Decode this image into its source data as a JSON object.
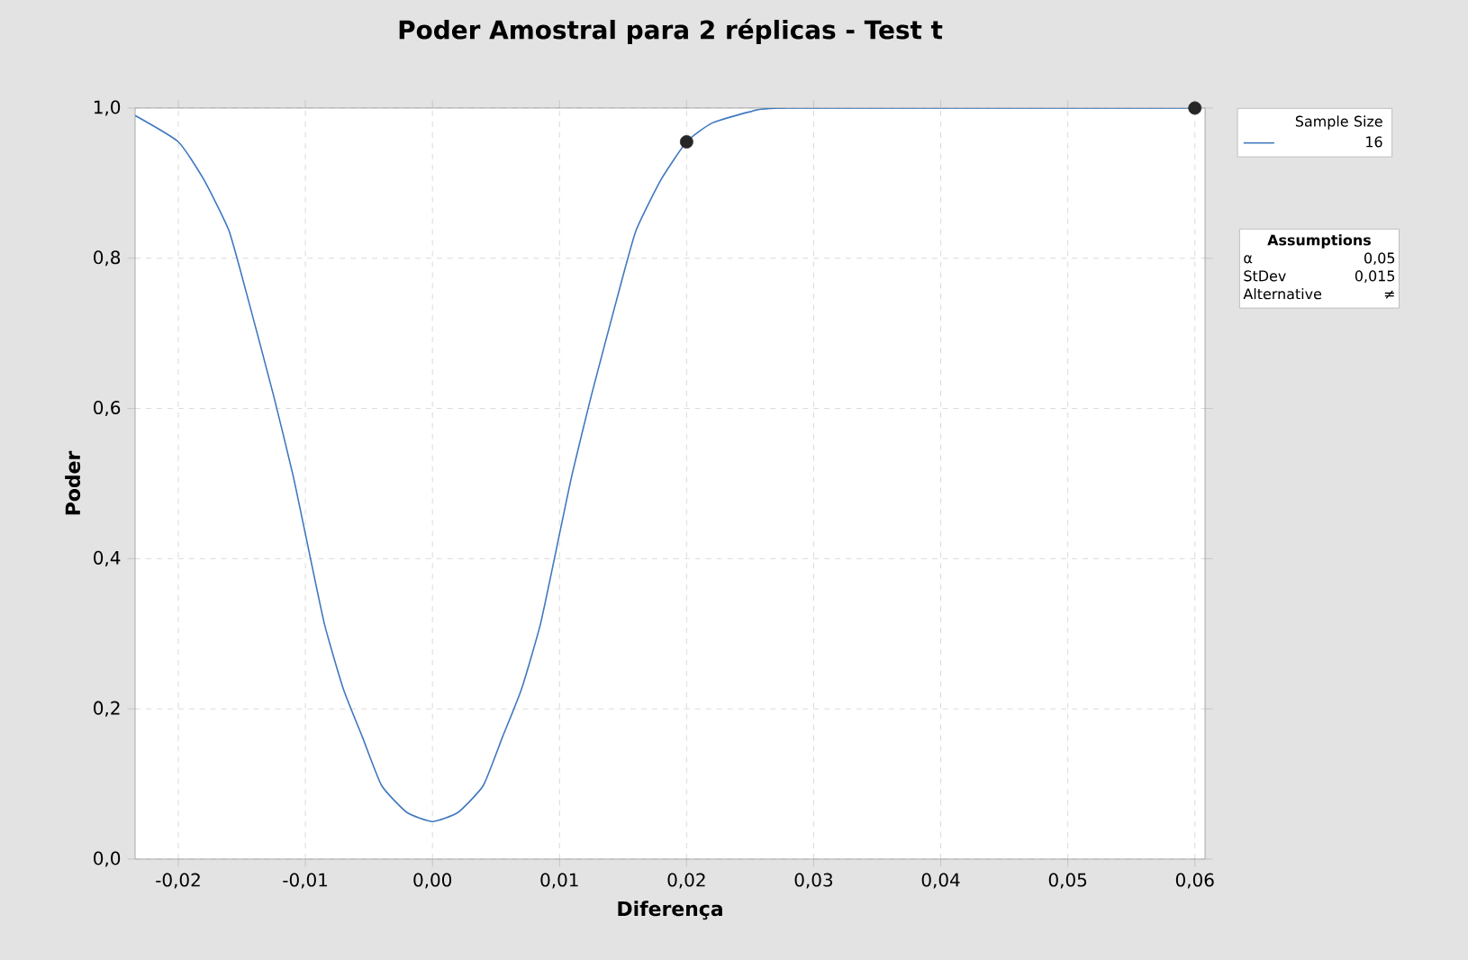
{
  "chart_data": {
    "type": "line",
    "title": "Poder Amostral para 2 réplicas - Test t",
    "xlabel": "Diferença",
    "ylabel": "Poder",
    "legend_title": "Sample Size",
    "legend": "right",
    "grid": true,
    "line_style": "solid",
    "xlim": [
      -0.0234,
      0.0608
    ],
    "ylim": [
      0,
      1
    ],
    "xticks": [
      {
        "value": -0.02,
        "label": "-0,02"
      },
      {
        "value": -0.01,
        "label": "-0,01"
      },
      {
        "value": 0,
        "label": "0,00"
      },
      {
        "value": 0.01,
        "label": "0,01"
      },
      {
        "value": 0.02,
        "label": "0,02"
      },
      {
        "value": 0.03,
        "label": "0,03"
      },
      {
        "value": 0.04,
        "label": "0,04"
      },
      {
        "value": 0.05,
        "label": "0,05"
      },
      {
        "value": 0.06,
        "label": "0,06"
      }
    ],
    "yticks": [
      {
        "value": 0,
        "label": "0,0"
      },
      {
        "value": 0.2,
        "label": "0,2"
      },
      {
        "value": 0.4,
        "label": "0,4"
      },
      {
        "value": 0.6,
        "label": "0,6"
      },
      {
        "value": 0.8,
        "label": "0,8"
      },
      {
        "value": 1,
        "label": "1,0"
      }
    ],
    "series": [
      {
        "name": "16",
        "color": "#3f78c0",
        "x": [
          -0.0234,
          -0.02,
          -0.018,
          -0.016,
          -0.0145,
          -0.0125,
          -0.011,
          -0.01,
          -0.0085,
          -0.007,
          -0.0055,
          -0.004,
          -0.002,
          0,
          0.002,
          0.004,
          0.0055,
          0.007,
          0.0085,
          0.01,
          0.011,
          0.0125,
          0.0145,
          0.016,
          0.018,
          0.02,
          0.022,
          0.025,
          0.028,
          0.06
        ],
        "values": [
          0.99,
          0.955,
          0.905,
          0.836,
          0.745,
          0.617,
          0.513,
          0.433,
          0.313,
          0.226,
          0.162,
          0.098,
          0.062,
          0.05,
          0.062,
          0.098,
          0.162,
          0.226,
          0.313,
          0.433,
          0.513,
          0.617,
          0.745,
          0.836,
          0.905,
          0.955,
          0.98,
          0.995,
          1.0,
          1.0
        ]
      },
      {
        "type": "scatter",
        "marker": "circle",
        "color": "#262626",
        "x": [
          0.02,
          0.06
        ],
        "values": [
          0.955,
          1.0
        ]
      }
    ],
    "annotations": [
      "Assumptions",
      "α",
      "0,05",
      "StDev",
      "0,015",
      "Alternative",
      "≠"
    ]
  }
}
